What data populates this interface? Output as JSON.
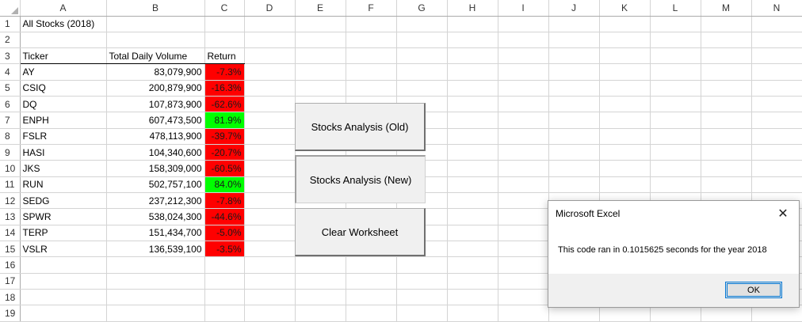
{
  "columns": [
    "A",
    "B",
    "C",
    "D",
    "E",
    "F",
    "G",
    "H",
    "I",
    "J",
    "K",
    "L",
    "M",
    "N"
  ],
  "rows": [
    "1",
    "2",
    "3",
    "4",
    "5",
    "6",
    "7",
    "8",
    "9",
    "10",
    "11",
    "12",
    "13",
    "14",
    "15",
    "16",
    "17",
    "18",
    "19"
  ],
  "sheet_title": "All Stocks (2018)",
  "headers": {
    "ticker": "Ticker",
    "volume": "Total Daily Volume",
    "return": "Return"
  },
  "data": [
    {
      "ticker": "AY",
      "volume": "83,079,900",
      "ret": "-7.3%",
      "status": "negative"
    },
    {
      "ticker": "CSIQ",
      "volume": "200,879,900",
      "ret": "-16.3%",
      "status": "negative"
    },
    {
      "ticker": "DQ",
      "volume": "107,873,900",
      "ret": "-62.6%",
      "status": "negative"
    },
    {
      "ticker": "ENPH",
      "volume": "607,473,500",
      "ret": "81.9%",
      "status": "positive"
    },
    {
      "ticker": "FSLR",
      "volume": "478,113,900",
      "ret": "-39.7%",
      "status": "negative"
    },
    {
      "ticker": "HASI",
      "volume": "104,340,600",
      "ret": "-20.7%",
      "status": "negative"
    },
    {
      "ticker": "JKS",
      "volume": "158,309,000",
      "ret": "-60.5%",
      "status": "negative"
    },
    {
      "ticker": "RUN",
      "volume": "502,757,100",
      "ret": "84.0%",
      "status": "positive"
    },
    {
      "ticker": "SEDG",
      "volume": "237,212,300",
      "ret": "-7.8%",
      "status": "negative"
    },
    {
      "ticker": "SPWR",
      "volume": "538,024,300",
      "ret": "-44.6%",
      "status": "negative"
    },
    {
      "ticker": "TERP",
      "volume": "151,434,700",
      "ret": "-5.0%",
      "status": "negative"
    },
    {
      "ticker": "VSLR",
      "volume": "136,539,100",
      "ret": "-3.5%",
      "status": "negative"
    }
  ],
  "buttons": {
    "old": "Stocks Analysis (Old)",
    "new": "Stocks Analysis (New)",
    "clear": "Clear Worksheet"
  },
  "dialog": {
    "title": "Microsoft Excel",
    "message": "This code ran in 0.1015625 seconds for the year 2018",
    "ok": "OK"
  },
  "colors": {
    "negative": "#ff0000",
    "positive": "#00ff00",
    "ok_border": "#0078d7"
  }
}
